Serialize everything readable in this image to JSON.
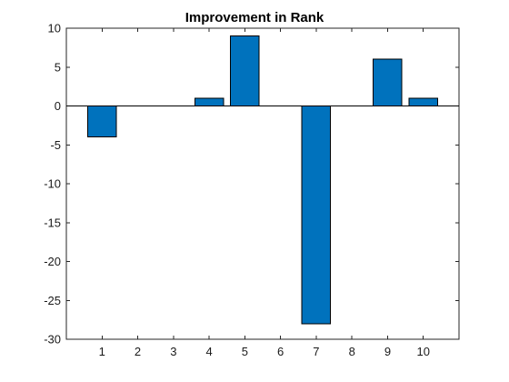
{
  "chart_data": {
    "type": "bar",
    "title": "Improvement in Rank",
    "xlabel": "",
    "ylabel": "",
    "categories": [
      "1",
      "2",
      "3",
      "4",
      "5",
      "6",
      "7",
      "8",
      "9",
      "10"
    ],
    "values": [
      -4,
      0,
      0,
      1,
      9,
      0,
      -28,
      0,
      6,
      1
    ],
    "ylim": [
      -30,
      10
    ],
    "yticks": [
      -30,
      -25,
      -20,
      -15,
      -10,
      -5,
      0,
      5,
      10
    ],
    "ytick_labels": [
      "-30",
      "-25",
      "-20",
      "-15",
      "-10",
      "-5",
      "0",
      "5",
      "10"
    ],
    "bar_color": "#0072BD",
    "grid": false,
    "legend": "none"
  }
}
